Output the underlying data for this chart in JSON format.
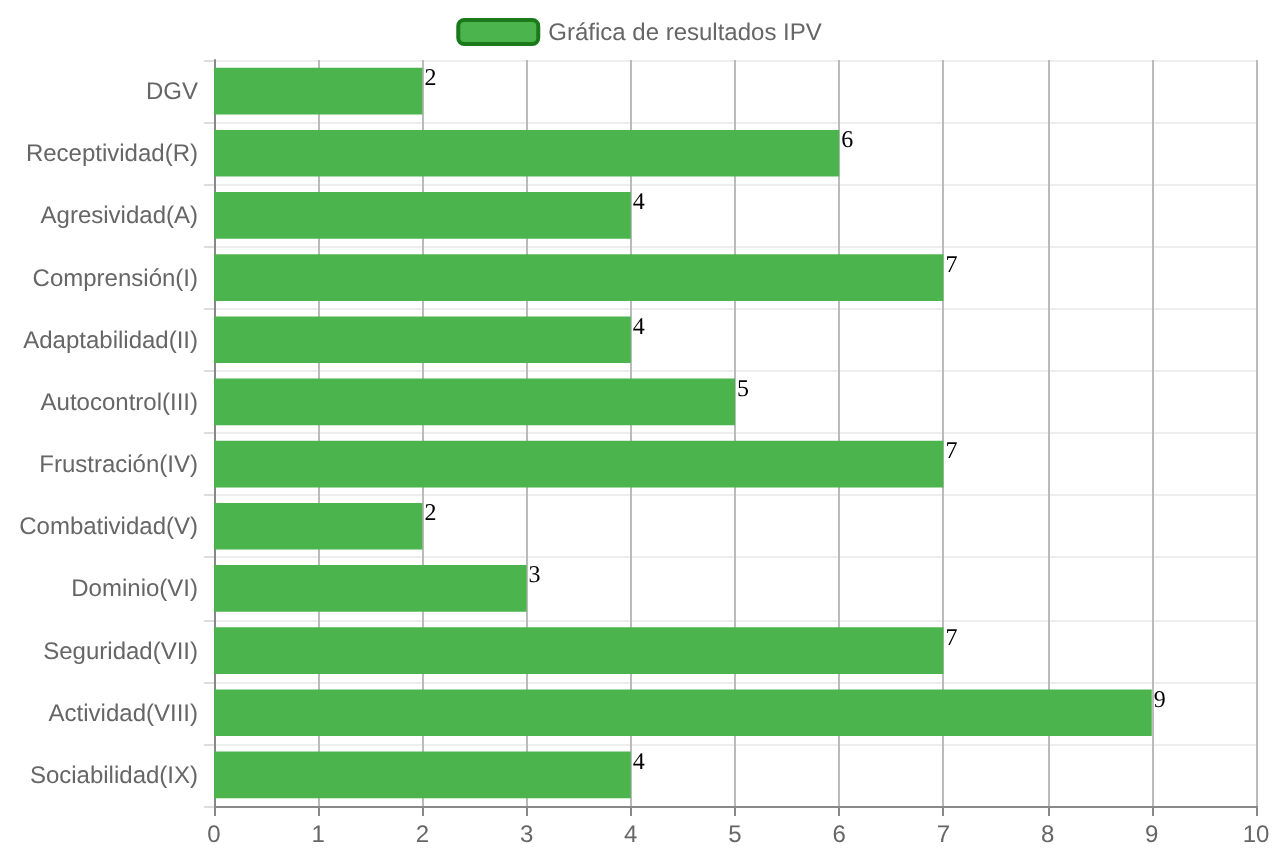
{
  "chart_data": {
    "type": "bar",
    "orientation": "horizontal",
    "categories": [
      "DGV",
      "Receptividad(R)",
      "Agresividad(A)",
      "Comprensión(I)",
      "Adaptabilidad(II)",
      "Autocontrol(III)",
      "Frustración(IV)",
      "Combatividad(V)",
      "Dominio(VI)",
      "Seguridad(VII)",
      "Actividad(VIII)",
      "Sociabilidad(IX)"
    ],
    "series": [
      {
        "name": "Gráfica de resultados IPV",
        "color": "#4cb44c",
        "values": [
          2,
          6,
          4,
          7,
          4,
          5,
          7,
          2,
          3,
          7,
          9,
          4
        ]
      }
    ],
    "xlim": [
      0,
      10
    ],
    "xticks": [
      0,
      1,
      2,
      3,
      4,
      5,
      6,
      7,
      8,
      9,
      10
    ],
    "data_labels": true,
    "grid": true,
    "legend": "top"
  }
}
